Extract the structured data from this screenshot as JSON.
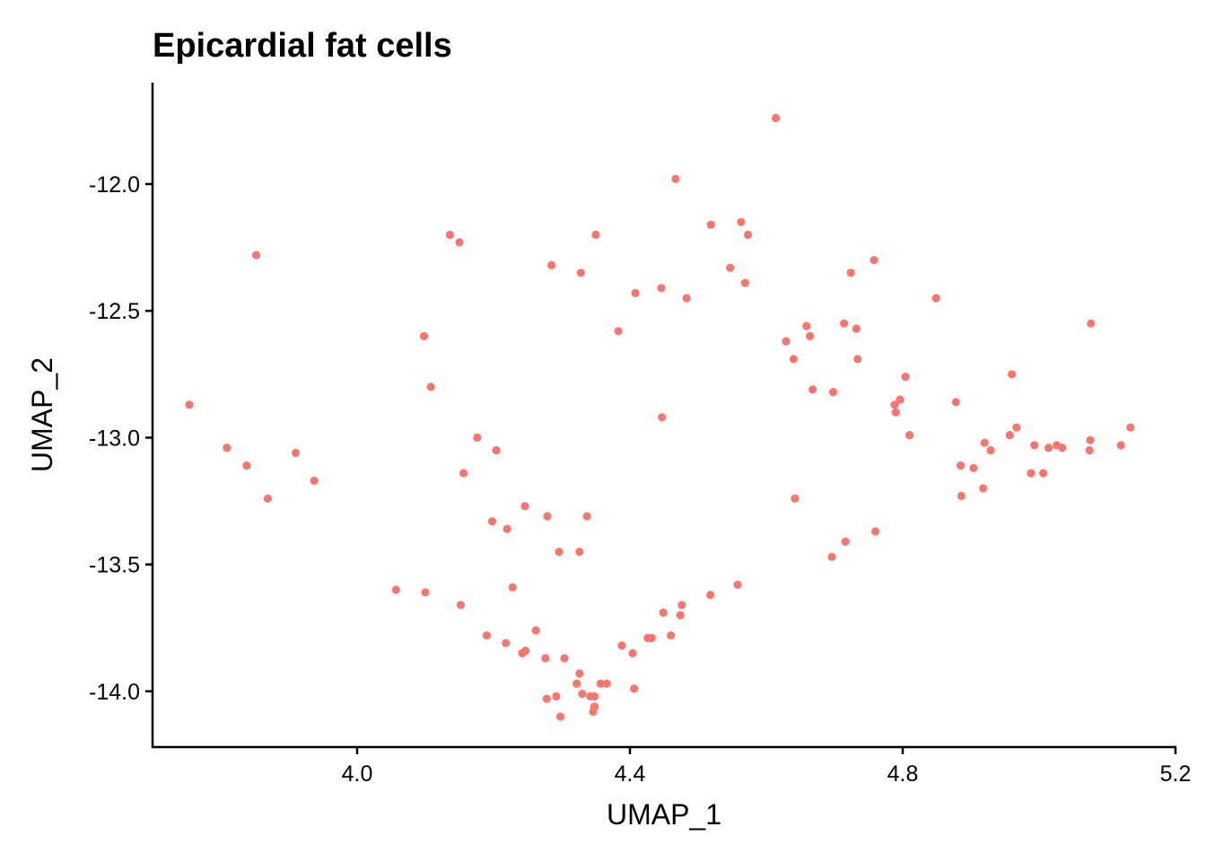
{
  "chart_data": {
    "type": "scatter",
    "title": "Epicardial fat cells",
    "xlabel": "UMAP_1",
    "ylabel": "UMAP_2",
    "xlim": [
      3.7,
      5.2
    ],
    "ylim": [
      -14.22,
      -11.6
    ],
    "x_ticks": [
      4.0,
      4.4,
      4.8,
      5.2
    ],
    "x_tick_labels": [
      "4.0",
      "4.4",
      "4.8",
      "5.2"
    ],
    "y_ticks": [
      -12.0,
      -12.5,
      -13.0,
      -13.5,
      -14.0
    ],
    "y_tick_labels": [
      "-12.0",
      "-12.5",
      "-13.0",
      "-13.5",
      "-14.0"
    ],
    "grid": false,
    "legend": "none",
    "point_color": "#F8766D",
    "points": [
      [
        3.754,
        -12.87
      ],
      [
        3.809,
        -13.04
      ],
      [
        3.838,
        -13.11
      ],
      [
        3.852,
        -12.28
      ],
      [
        3.869,
        -13.24
      ],
      [
        3.91,
        -13.06
      ],
      [
        3.937,
        -13.17
      ],
      [
        4.057,
        -13.6
      ],
      [
        4.098,
        -12.6
      ],
      [
        4.1,
        -13.61
      ],
      [
        4.108,
        -12.8
      ],
      [
        4.136,
        -12.2
      ],
      [
        4.15,
        -12.23
      ],
      [
        4.152,
        -13.66
      ],
      [
        4.156,
        -13.14
      ],
      [
        4.176,
        -13.0
      ],
      [
        4.19,
        -13.78
      ],
      [
        4.198,
        -13.33
      ],
      [
        4.204,
        -13.05
      ],
      [
        4.218,
        -13.81
      ],
      [
        4.22,
        -13.36
      ],
      [
        4.228,
        -13.59
      ],
      [
        4.242,
        -13.85
      ],
      [
        4.246,
        -13.27
      ],
      [
        4.247,
        -13.84
      ],
      [
        4.262,
        -13.76
      ],
      [
        4.276,
        -13.87
      ],
      [
        4.278,
        -14.03
      ],
      [
        4.279,
        -13.31
      ],
      [
        4.285,
        -12.32
      ],
      [
        4.292,
        -14.02
      ],
      [
        4.296,
        -13.45
      ],
      [
        4.298,
        -14.1
      ],
      [
        4.304,
        -13.87
      ],
      [
        4.322,
        -13.97
      ],
      [
        4.326,
        -13.93
      ],
      [
        4.326,
        -13.45
      ],
      [
        4.328,
        -12.35
      ],
      [
        4.33,
        -14.01
      ],
      [
        4.337,
        -13.31
      ],
      [
        4.342,
        -14.02
      ],
      [
        4.348,
        -14.02
      ],
      [
        4.346,
        -14.08
      ],
      [
        4.348,
        -14.06
      ],
      [
        4.35,
        -12.2
      ],
      [
        4.357,
        -13.97
      ],
      [
        4.366,
        -13.97
      ],
      [
        4.383,
        -12.58
      ],
      [
        4.388,
        -13.82
      ],
      [
        4.404,
        -13.85
      ],
      [
        4.406,
        -13.99
      ],
      [
        4.408,
        -12.43
      ],
      [
        4.426,
        -13.79
      ],
      [
        4.432,
        -13.79
      ],
      [
        4.446,
        -12.41
      ],
      [
        4.447,
        -12.92
      ],
      [
        4.449,
        -13.69
      ],
      [
        4.46,
        -13.78
      ],
      [
        4.467,
        -11.98
      ],
      [
        4.474,
        -13.7
      ],
      [
        4.476,
        -13.66
      ],
      [
        4.483,
        -12.45
      ],
      [
        4.518,
        -13.62
      ],
      [
        4.519,
        -12.16
      ],
      [
        4.547,
        -12.33
      ],
      [
        4.558,
        -13.58
      ],
      [
        4.563,
        -12.15
      ],
      [
        4.569,
        -12.39
      ],
      [
        4.573,
        -12.2
      ],
      [
        4.614,
        -11.74
      ],
      [
        4.629,
        -12.62
      ],
      [
        4.64,
        -12.69
      ],
      [
        4.642,
        -13.24
      ],
      [
        4.659,
        -12.56
      ],
      [
        4.664,
        -12.6
      ],
      [
        4.668,
        -12.81
      ],
      [
        4.696,
        -13.47
      ],
      [
        4.698,
        -12.82
      ],
      [
        4.714,
        -12.55
      ],
      [
        4.716,
        -13.41
      ],
      [
        4.724,
        -12.35
      ],
      [
        4.732,
        -12.57
      ],
      [
        4.734,
        -12.69
      ],
      [
        4.758,
        -12.3
      ],
      [
        4.76,
        -13.37
      ],
      [
        4.788,
        -12.87
      ],
      [
        4.79,
        -12.9
      ],
      [
        4.796,
        -12.85
      ],
      [
        4.804,
        -12.76
      ],
      [
        4.81,
        -12.99
      ],
      [
        4.849,
        -12.45
      ],
      [
        4.878,
        -12.86
      ],
      [
        4.885,
        -13.11
      ],
      [
        4.886,
        -13.23
      ],
      [
        4.904,
        -13.12
      ],
      [
        4.918,
        -13.2
      ],
      [
        4.92,
        -13.02
      ],
      [
        4.929,
        -13.05
      ],
      [
        4.957,
        -12.99
      ],
      [
        4.96,
        -12.75
      ],
      [
        4.967,
        -12.96
      ],
      [
        4.988,
        -13.14
      ],
      [
        4.993,
        -13.03
      ],
      [
        5.006,
        -13.14
      ],
      [
        5.014,
        -13.04
      ],
      [
        5.026,
        -13.03
      ],
      [
        5.034,
        -13.04
      ],
      [
        5.074,
        -13.05
      ],
      [
        5.075,
        -13.01
      ],
      [
        5.076,
        -12.55
      ],
      [
        5.12,
        -13.03
      ],
      [
        5.134,
        -12.96
      ]
    ]
  }
}
